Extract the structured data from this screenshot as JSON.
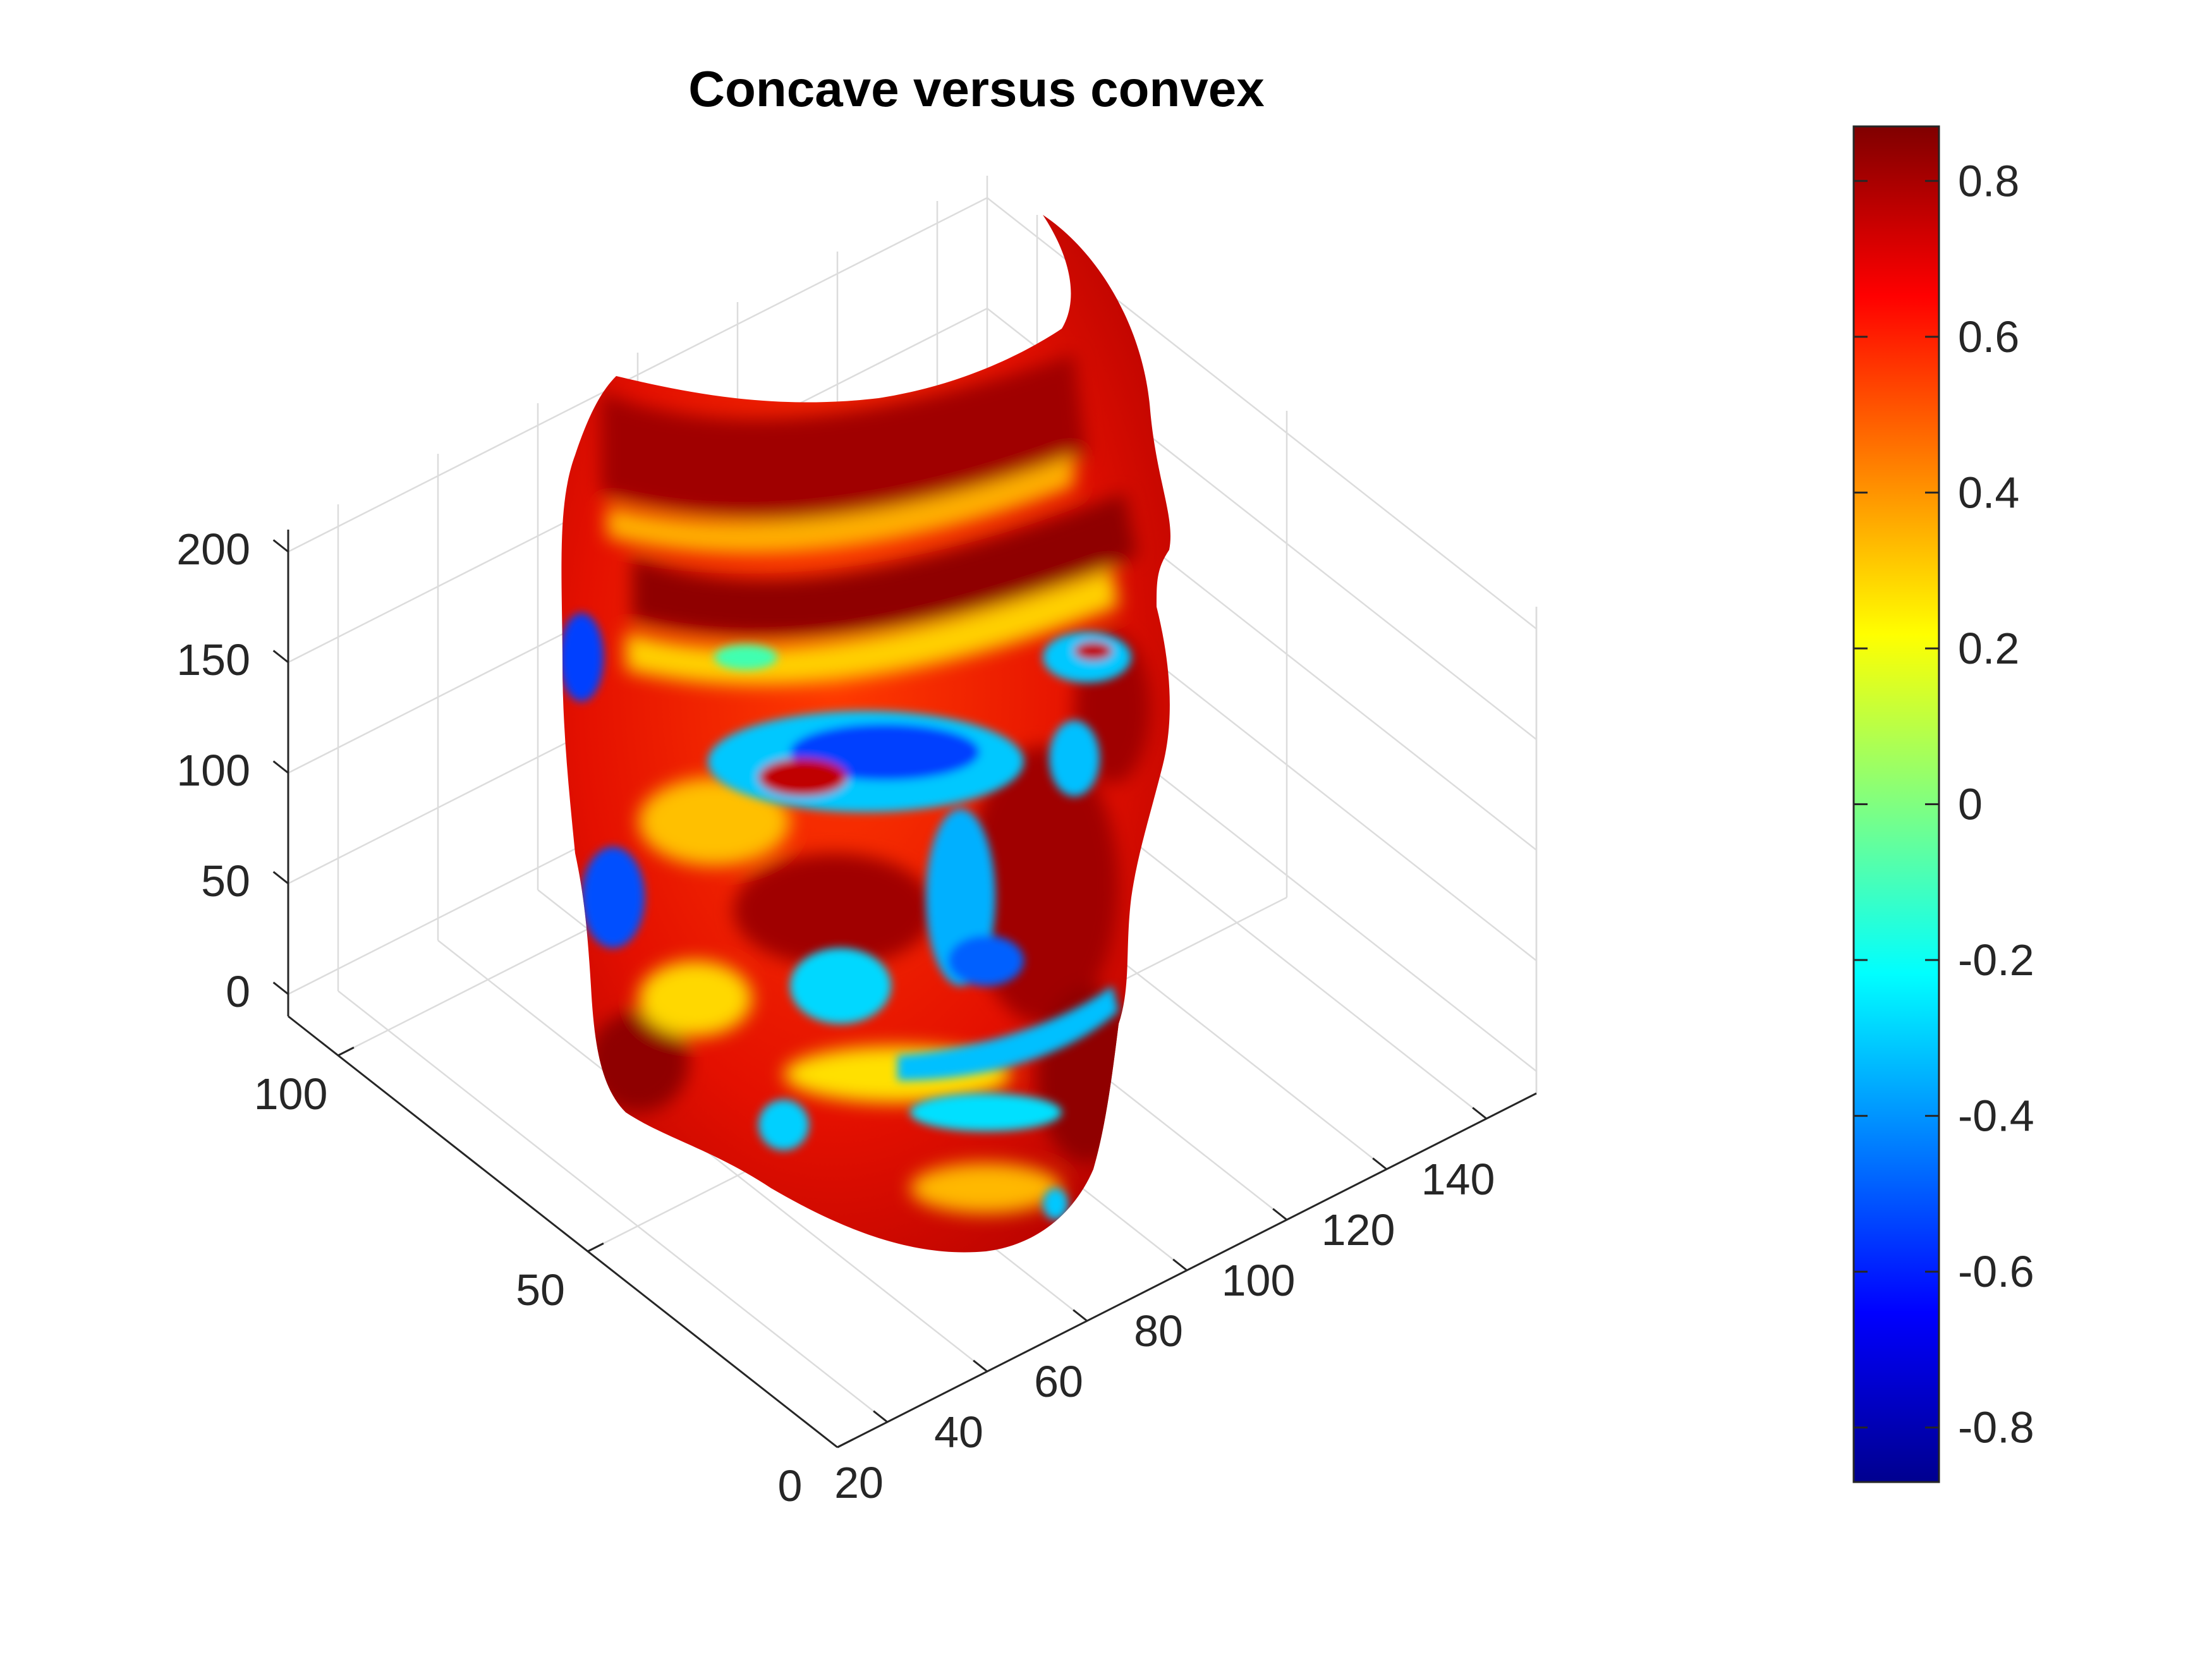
{
  "chart_data": {
    "type": "surface",
    "title": "Concave versus convex",
    "xlabel": "",
    "ylabel": "",
    "zlabel": "",
    "x_ticks": [
      "20",
      "40",
      "60",
      "80",
      "100",
      "120",
      "140"
    ],
    "y_ticks": [
      "0",
      "50",
      "100"
    ],
    "z_ticks": [
      "0",
      "50",
      "100",
      "150",
      "200"
    ],
    "xlim": [
      10,
      150
    ],
    "ylim": [
      0,
      110
    ],
    "zlim": [
      -10,
      210
    ],
    "grid": true,
    "colormap": "jet",
    "colorbar": {
      "ticks": [
        "0.8",
        "0.6",
        "0.4",
        "0.2",
        "0",
        "-0.2",
        "-0.4",
        "-0.6",
        "-0.8"
      ],
      "range": [
        -0.87,
        0.87
      ],
      "location": "right"
    },
    "surface_description_colors": {
      "convex": "#a00000",
      "neutral": "#ffff00",
      "concave": "#0000a0"
    }
  }
}
